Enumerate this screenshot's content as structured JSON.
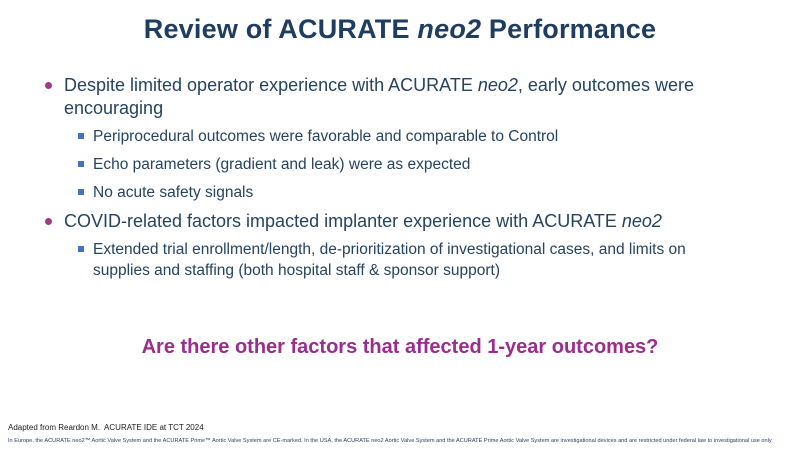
{
  "slide_title": {
    "prefix": "Review of ACURATE ",
    "em": "neo2",
    "suffix": " Performance"
  },
  "bullets": [
    {
      "level": 1,
      "segments": [
        {
          "t": "Despite limited operator experience with ACURATE "
        },
        {
          "t": "neo2",
          "i": true
        },
        {
          "t": ", early outcomes were encouraging"
        }
      ]
    },
    {
      "level": 2,
      "segments": [
        {
          "t": "Periprocedural outcomes were favorable and comparable to Control"
        }
      ]
    },
    {
      "level": 2,
      "segments": [
        {
          "t": "Echo parameters (gradient and leak) were as expected"
        }
      ]
    },
    {
      "level": 2,
      "segments": [
        {
          "t": "No acute safety signals"
        }
      ]
    },
    {
      "level": 1,
      "segments": [
        {
          "t": "COVID-related factors impacted implanter experience with ACURATE "
        },
        {
          "t": "neo2",
          "i": true
        }
      ]
    },
    {
      "level": 2,
      "segments": [
        {
          "t": "Extended trial enrollment/length, de-prioritization of investigational cases, and limits on supplies and staffing (both hospital staff & sponsor support)"
        }
      ]
    }
  ],
  "question": "Are there other factors that affected 1-year outcomes?",
  "footer": {
    "attribution": "Adapted from Reardon M.  ACURATE IDE at TCT 2024",
    "disclaimer": "In Europe, the ACURATE neo2™ Aortic Valve System and the ACURATE Prime™ Aortic Valve System are CE-marked. In the USA, the ACURATE neo2 Aortic Valve System and the ACURATE Prime Aortic Valve System are investigational devices and are restricted under federal law to investigational use only."
  },
  "colors": {
    "title": "#1F3C61",
    "body": "#26435F",
    "bullet_dot": "#9E3A8C",
    "bullet_square": "#4472C4",
    "question": "#9C2C8E"
  }
}
